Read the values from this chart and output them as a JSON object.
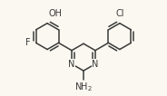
{
  "bg_color": "#faf8f0",
  "bond_color": "#3a3a3a",
  "bond_lw": 1.1,
  "text_color": "#3a3a3a",
  "font_size": 6.5,
  "fig_width": 1.84,
  "fig_height": 1.06,
  "dpi": 100,
  "xlim": [
    0.0,
    10.0
  ],
  "ylim": [
    0.0,
    5.75
  ]
}
